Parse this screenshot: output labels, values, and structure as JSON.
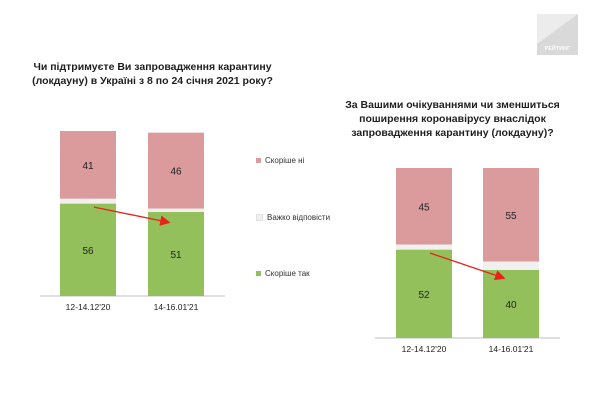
{
  "brand": {
    "logo_text": "РЕЙТИНГ"
  },
  "colors": {
    "no": "#db9a9b",
    "hard": "#f0f0f0",
    "yes": "#93c05a",
    "arrow": "#e8221a"
  },
  "legend": [
    {
      "label": "Скоріше ні",
      "color": "#db9a9b"
    },
    {
      "label": "Важко відповісти",
      "color": "#f0f0f0"
    },
    {
      "label": "Скоріше так",
      "color": "#93c05a"
    }
  ],
  "chart_data": [
    {
      "type": "bar",
      "stacked": true,
      "title_lines": [
        "Чи підтримуєте Ви запровадження карантину",
        "(локдауну)  в Україні з 8 по 24 січня 2021 року?"
      ],
      "categories": [
        "12-14.12'20",
        "14-16.01'21"
      ],
      "series": [
        {
          "name": "Скоріше так",
          "values": [
            56,
            51
          ]
        },
        {
          "name": "Важко відповісти",
          "values": [
            3,
            2
          ]
        },
        {
          "name": "Скоріше ні",
          "values": [
            41,
            46
          ]
        }
      ],
      "ylim": [
        0,
        100
      ],
      "grid": false,
      "legend_position": "right",
      "arrow": "red trend arrow from first to second bar"
    },
    {
      "type": "bar",
      "stacked": true,
      "title_lines": [
        "За Вашими очікуваннями чи зменшиться",
        "поширення коронавірусу внаслідок",
        "запровадження карантину (локдауну)?"
      ],
      "categories": [
        "12-14.12'20",
        "14-16.01'21"
      ],
      "series": [
        {
          "name": "Скоріше так",
          "values": [
            52,
            40
          ]
        },
        {
          "name": "Важко відповісти",
          "values": [
            3,
            5
          ]
        },
        {
          "name": "Скоріше ні",
          "values": [
            45,
            55
          ]
        }
      ],
      "ylim": [
        0,
        100
      ],
      "grid": false,
      "legend_position": "left",
      "arrow": "red trend arrow from first to second bar"
    }
  ]
}
